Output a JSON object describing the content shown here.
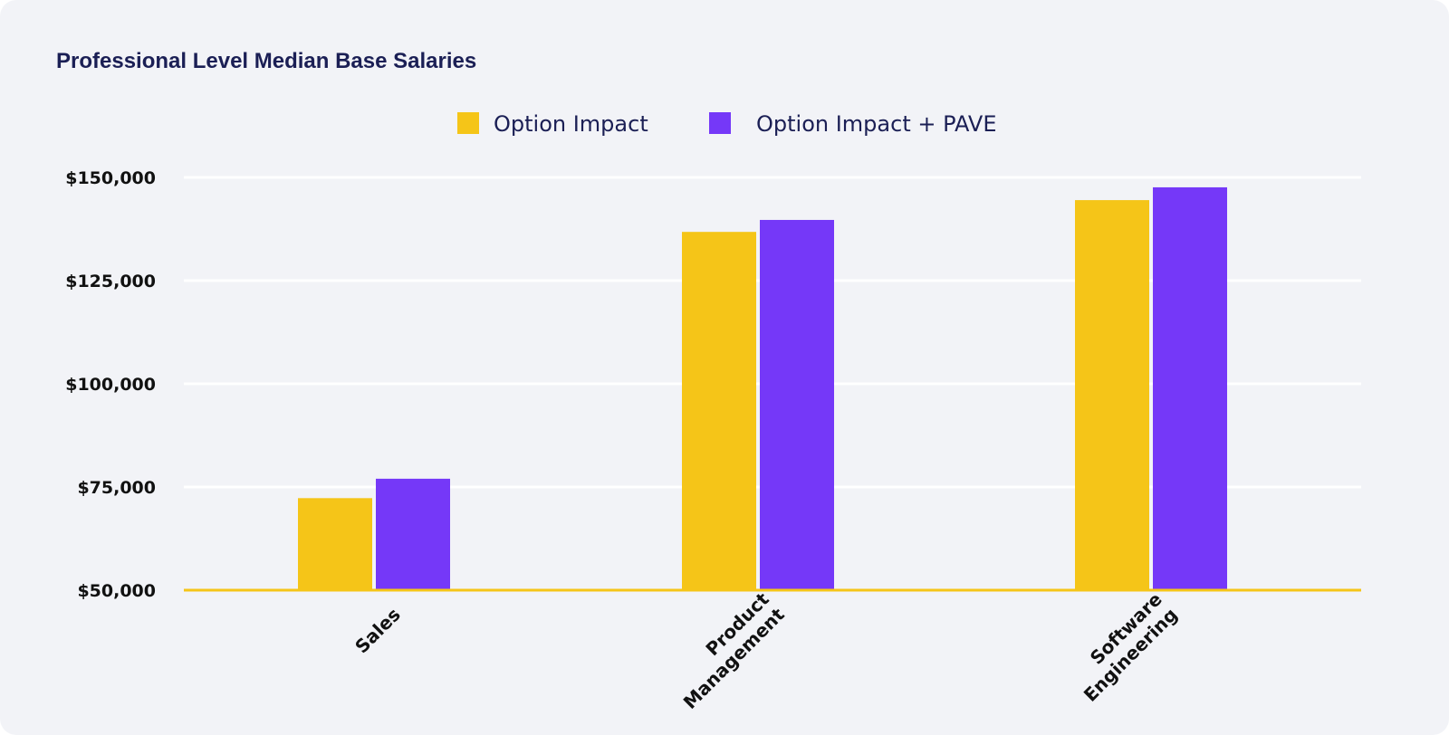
{
  "colors": {
    "background": "#f2f3f7",
    "grid": "#ffffff",
    "baseline": "#f5c518",
    "title": "#1b1f55"
  },
  "chart_data": {
    "type": "bar",
    "title": "Professional Level Median Base Salaries",
    "xlabel": "",
    "ylabel": "",
    "ylim": [
      50000,
      150000
    ],
    "yticks": [
      50000,
      75000,
      100000,
      125000,
      150000
    ],
    "ytick_labels": [
      "$50,000",
      "$75,000",
      "$100,000",
      "$125,000",
      "$150,000"
    ],
    "categories": [
      "Sales",
      "Product Management",
      "Software Engineering"
    ],
    "category_lines": [
      [
        "Sales"
      ],
      [
        "Product",
        "Management"
      ],
      [
        "Software",
        "Engineering"
      ]
    ],
    "series": [
      {
        "name": "Option Impact",
        "color": "#f5c518",
        "values": [
          72300,
          136800,
          144500
        ]
      },
      {
        "name": "Option Impact + PAVE",
        "color": "#7538f8",
        "values": [
          77000,
          139700,
          147600
        ]
      }
    ],
    "grid": true,
    "legend_position": "top-center"
  }
}
